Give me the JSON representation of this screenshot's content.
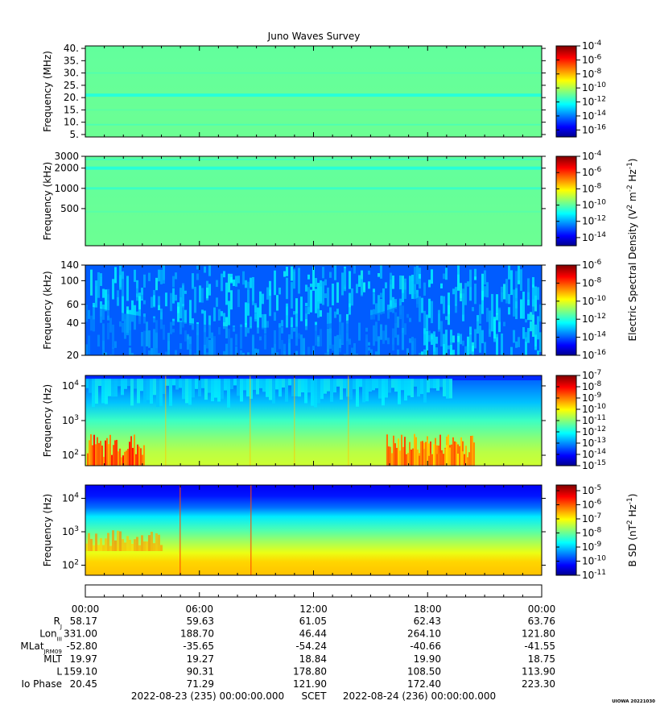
{
  "title": "Juno Waves Survey",
  "credit": "UIOWA 20221030",
  "chart_data": [
    {
      "type": "heatmap",
      "panel": "waves-hfr-high",
      "ylabel": "Frequency (MHz)",
      "yscale": "linear",
      "ylim": [
        4,
        41
      ],
      "yticks": [
        {
          "value": 40,
          "label": "40."
        },
        {
          "value": 35,
          "label": "35."
        },
        {
          "value": 30,
          "label": "30."
        },
        {
          "value": 25,
          "label": "25."
        },
        {
          "value": 20,
          "label": "20."
        },
        {
          "value": 15,
          "label": "15."
        },
        {
          "value": 10,
          "label": "10."
        },
        {
          "value": 5,
          "label": "5."
        }
      ],
      "colorbar": {
        "scale": "log",
        "range_exp": [
          -17,
          -4
        ],
        "ticks": [
          -4,
          -6,
          -8,
          -10,
          -12,
          -14,
          -16
        ]
      }
    },
    {
      "type": "heatmap",
      "panel": "waves-hfr-low",
      "ylabel": "Frequency (kHz)",
      "yscale": "log",
      "ylim": [
        140,
        3000
      ],
      "yticks": [
        {
          "value": 3000,
          "label": "3000"
        },
        {
          "value": 2000,
          "label": "2000"
        },
        {
          "value": 1000,
          "label": "1000"
        },
        {
          "value": 500,
          "label": "500"
        }
      ],
      "colorbar": {
        "scale": "log",
        "range_exp": [
          -15,
          -4
        ],
        "ticks": [
          -4,
          -6,
          -8,
          -10,
          -12,
          -14
        ]
      }
    },
    {
      "type": "heatmap",
      "panel": "waves-lfr-high",
      "ylabel": "Frequency (kHz)",
      "yscale": "log",
      "ylim": [
        20,
        140
      ],
      "yticks": [
        {
          "value": 140,
          "label": "140"
        },
        {
          "value": 100,
          "label": "100"
        },
        {
          "value": 60,
          "label": "60"
        },
        {
          "value": 40,
          "label": "40"
        },
        {
          "value": 20,
          "label": "20"
        }
      ],
      "colorbar": {
        "scale": "log",
        "range_exp": [
          -16,
          -6
        ],
        "ticks": [
          -6,
          -8,
          -10,
          -12,
          -14,
          -16
        ]
      }
    },
    {
      "type": "heatmap",
      "panel": "waves-lfr-e",
      "ylabel": "Frequency (Hz)",
      "yscale": "log",
      "ylim": [
        50,
        20000
      ],
      "yticks": [
        {
          "value": 10000,
          "label": "10",
          "sup": "4"
        },
        {
          "value": 1000,
          "label": "10",
          "sup": "3"
        },
        {
          "value": 100,
          "label": "10",
          "sup": "2"
        }
      ],
      "colorbar": {
        "scale": "log",
        "range_exp": [
          -15,
          -7
        ],
        "ticks": [
          -7,
          -8,
          -9,
          -10,
          -11,
          -12,
          -13,
          -14,
          -15
        ]
      }
    },
    {
      "type": "heatmap",
      "panel": "waves-lfr-b",
      "ylabel": "Frequency (Hz)",
      "yscale": "log",
      "ylim": [
        50,
        25000
      ],
      "yticks": [
        {
          "value": 10000,
          "label": "10",
          "sup": "4"
        },
        {
          "value": 1000,
          "label": "10",
          "sup": "3"
        },
        {
          "value": 100,
          "label": "10",
          "sup": "2"
        }
      ],
      "colorbar": {
        "scale": "log",
        "range_exp": [
          -11,
          -4.6
        ],
        "ticks": [
          -5,
          -6,
          -7,
          -8,
          -9,
          -10,
          -11
        ]
      }
    }
  ],
  "colorbar_labels": {
    "electric": "Electric Spectral Density (V",
    "electric_parts": [
      "Electric Spectral Density (V",
      "2",
      " m",
      "-2",
      " Hz",
      "-1",
      ")"
    ],
    "magnetic_parts": [
      "B SD (nT",
      "2",
      " Hz",
      "-1",
      ")"
    ],
    "tick_base": "10"
  },
  "xaxis": {
    "time_labels": [
      "00:00",
      "06:00",
      "12:00",
      "18:00",
      "00:00"
    ],
    "span_hours": 24,
    "tick_hours": [
      0,
      6,
      12,
      18,
      24
    ]
  },
  "ephemeris": [
    {
      "label": "R",
      "sub": "J",
      "values": [
        "58.17",
        "59.63",
        "61.05",
        "62.43",
        "63.76"
      ]
    },
    {
      "label": "Lon",
      "sub": "III",
      "values": [
        "331.00",
        "188.70",
        "46.44",
        "264.10",
        "121.80"
      ]
    },
    {
      "label": "MLat",
      "sub": "JRM09",
      "values": [
        "-52.80",
        "-35.65",
        "-54.24",
        "-40.66",
        "-41.55"
      ]
    },
    {
      "label": "MLT",
      "sub": "",
      "values": [
        "19.97",
        "19.27",
        "18.84",
        "19.90",
        "18.75"
      ]
    },
    {
      "label": "L",
      "sub": "",
      "values": [
        "159.10",
        "90.31",
        "178.80",
        "108.50",
        "113.90"
      ]
    },
    {
      "label": "Io Phase",
      "sub": "",
      "values": [
        "20.45",
        "71.29",
        "121.90",
        "172.40",
        "223.30"
      ]
    }
  ],
  "footer": {
    "start": "2022-08-23 (235) 00:00:00.000",
    "mid": "SCET",
    "end": "2022-08-24 (236) 00:00:00.000"
  }
}
